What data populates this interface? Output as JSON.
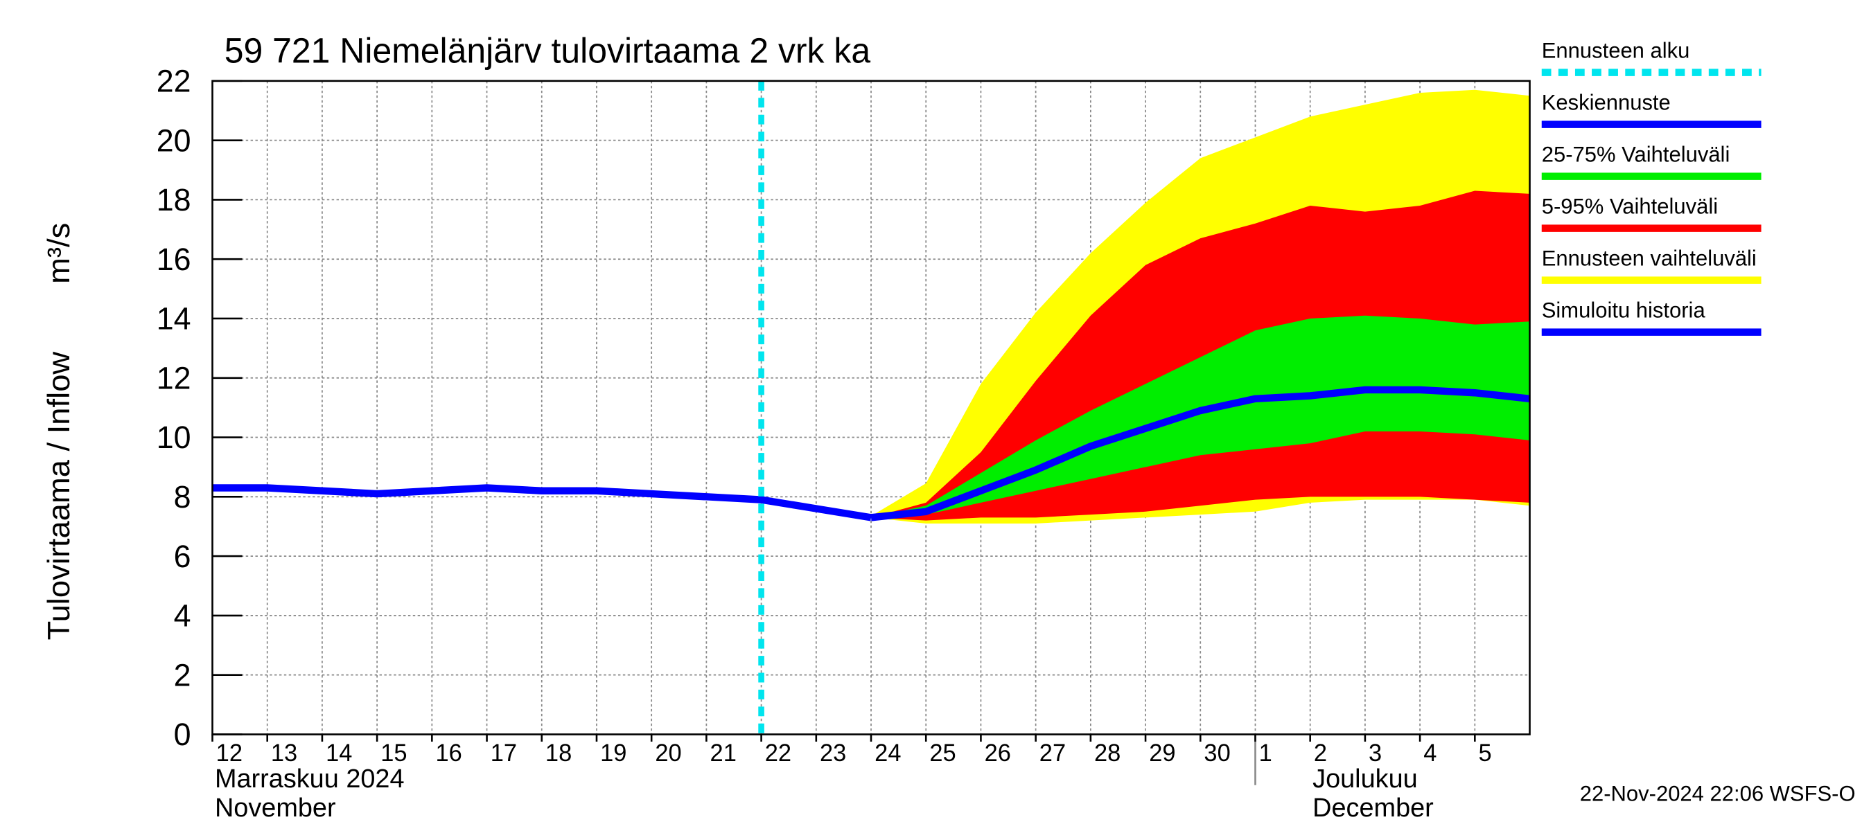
{
  "chart_data": {
    "type": "line",
    "title": "59 721 Niemelänjärv tulovirtaama 2 vrk ka",
    "y_label": "Tulovirtaama / Inflow",
    "y_unit": "m³/s",
    "month_labels": [
      [
        "Marraskuu 2024",
        "November"
      ],
      [
        "Joulukuu",
        "December"
      ]
    ],
    "footer": "22-Nov-2024 22:06 WSFS-O",
    "xlim": [
      "2024-11-12",
      "2024-12-06"
    ],
    "xticks": [
      {
        "value": "2024-11-12",
        "label": "12"
      },
      {
        "value": "2024-11-13",
        "label": "13"
      },
      {
        "value": "2024-11-14",
        "label": "14"
      },
      {
        "value": "2024-11-15",
        "label": "15"
      },
      {
        "value": "2024-11-16",
        "label": "16"
      },
      {
        "value": "2024-11-17",
        "label": "17"
      },
      {
        "value": "2024-11-18",
        "label": "18"
      },
      {
        "value": "2024-11-19",
        "label": "19"
      },
      {
        "value": "2024-11-20",
        "label": "20"
      },
      {
        "value": "2024-11-21",
        "label": "21"
      },
      {
        "value": "2024-11-22",
        "label": "22"
      },
      {
        "value": "2024-11-23",
        "label": "23"
      },
      {
        "value": "2024-11-24",
        "label": "24"
      },
      {
        "value": "2024-11-25",
        "label": "25"
      },
      {
        "value": "2024-11-26",
        "label": "26"
      },
      {
        "value": "2024-11-27",
        "label": "27"
      },
      {
        "value": "2024-11-28",
        "label": "28"
      },
      {
        "value": "2024-11-29",
        "label": "29"
      },
      {
        "value": "2024-11-30",
        "label": "30"
      },
      {
        "value": "2024-12-01",
        "label": "1"
      },
      {
        "value": "2024-12-02",
        "label": "2"
      },
      {
        "value": "2024-12-03",
        "label": "3"
      },
      {
        "value": "2024-12-04",
        "label": "4"
      },
      {
        "value": "2024-12-05",
        "label": "5"
      }
    ],
    "ylim": [
      0,
      22
    ],
    "yticks": [
      0,
      2,
      4,
      6,
      8,
      10,
      12,
      14,
      16,
      18,
      20,
      22
    ],
    "grid": true,
    "forecast_start": {
      "name": "Ennusteen alku",
      "color": "#00e5ee",
      "x": "2024-11-22"
    },
    "series": [
      {
        "name": "Keskiennuste",
        "type": "line",
        "color": "#0000ff",
        "x": [
          "2024-11-24",
          "2024-11-25",
          "2024-11-26",
          "2024-11-27",
          "2024-11-28",
          "2024-11-29",
          "2024-11-30",
          "2024-12-01",
          "2024-12-02",
          "2024-12-03",
          "2024-12-04",
          "2024-12-05",
          "2024-12-06"
        ],
        "values": [
          7.3,
          7.5,
          8.2,
          8.9,
          9.7,
          10.3,
          10.9,
          11.3,
          11.4,
          11.6,
          11.6,
          11.5,
          11.3
        ]
      },
      {
        "name": "25-75% Vaihteluväli",
        "type": "band",
        "color": "#00ee00",
        "x": [
          "2024-11-24",
          "2024-11-25",
          "2024-11-26",
          "2024-11-27",
          "2024-11-28",
          "2024-11-29",
          "2024-11-30",
          "2024-12-01",
          "2024-12-02",
          "2024-12-03",
          "2024-12-04",
          "2024-12-05",
          "2024-12-06"
        ],
        "low": [
          7.3,
          7.4,
          7.8,
          8.2,
          8.6,
          9.0,
          9.4,
          9.6,
          9.8,
          10.2,
          10.2,
          10.1,
          9.9
        ],
        "high": [
          7.3,
          7.7,
          8.8,
          9.9,
          10.9,
          11.8,
          12.7,
          13.6,
          14.0,
          14.1,
          14.0,
          13.8,
          13.9
        ]
      },
      {
        "name": "5-95% Vaihteluväli",
        "type": "band",
        "color": "#ff0000",
        "x": [
          "2024-11-24",
          "2024-11-25",
          "2024-11-26",
          "2024-11-27",
          "2024-11-28",
          "2024-11-29",
          "2024-11-30",
          "2024-12-01",
          "2024-12-02",
          "2024-12-03",
          "2024-12-04",
          "2024-12-05",
          "2024-12-06"
        ],
        "low": [
          7.3,
          7.2,
          7.3,
          7.3,
          7.4,
          7.5,
          7.7,
          7.9,
          8.0,
          8.0,
          8.0,
          7.9,
          7.8
        ],
        "high": [
          7.3,
          7.8,
          9.5,
          11.9,
          14.1,
          15.8,
          16.7,
          17.2,
          17.8,
          17.6,
          17.8,
          18.3,
          18.2
        ]
      },
      {
        "name": "Ennusteen vaihteluväli",
        "type": "band",
        "color": "#ffff00",
        "x": [
          "2024-11-24",
          "2024-11-25",
          "2024-11-26",
          "2024-11-27",
          "2024-11-28",
          "2024-11-29",
          "2024-11-30",
          "2024-12-01",
          "2024-12-02",
          "2024-12-03",
          "2024-12-04",
          "2024-12-05",
          "2024-12-06"
        ],
        "low": [
          7.3,
          7.1,
          7.1,
          7.1,
          7.2,
          7.3,
          7.4,
          7.5,
          7.8,
          7.9,
          7.9,
          7.9,
          7.7
        ],
        "high": [
          7.35,
          8.45,
          11.8,
          14.2,
          16.2,
          17.9,
          19.4,
          20.1,
          20.8,
          21.2,
          21.6,
          21.7,
          21.5
        ]
      },
      {
        "name": "Simuloitu historia",
        "type": "line",
        "color": "#0000ff",
        "x": [
          "2024-11-12",
          "2024-11-13",
          "2024-11-14",
          "2024-11-15",
          "2024-11-16",
          "2024-11-17",
          "2024-11-18",
          "2024-11-19",
          "2024-11-20",
          "2024-11-21",
          "2024-11-22",
          "2024-11-23",
          "2024-11-24"
        ],
        "values": [
          8.3,
          8.3,
          8.2,
          8.1,
          8.2,
          8.3,
          8.2,
          8.2,
          8.1,
          8.0,
          7.9,
          7.6,
          7.3
        ]
      }
    ]
  }
}
